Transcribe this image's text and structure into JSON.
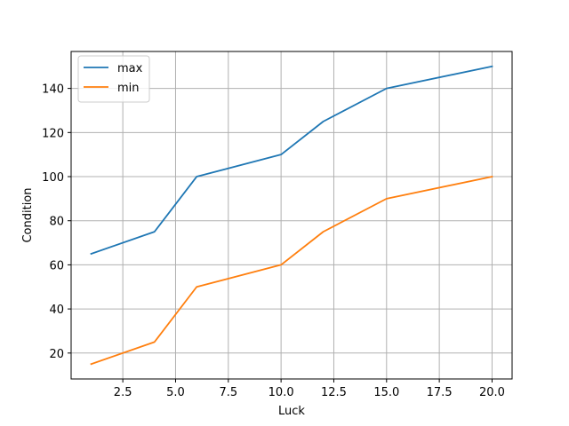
{
  "chart_data": {
    "type": "line",
    "title": "",
    "xlabel": "Luck",
    "ylabel": "Condition",
    "xlim": [
      0.05,
      20.95
    ],
    "ylim": [
      8.25,
      156.75
    ],
    "xticks": [
      2.5,
      5.0,
      7.5,
      10.0,
      12.5,
      15.0,
      17.5,
      20.0
    ],
    "xtick_labels": [
      "2.5",
      "5.0",
      "7.5",
      "10.0",
      "12.5",
      "15.0",
      "17.5",
      "20.0"
    ],
    "yticks": [
      20,
      40,
      60,
      80,
      100,
      120,
      140
    ],
    "ytick_labels": [
      "20",
      "40",
      "60",
      "80",
      "100",
      "120",
      "140"
    ],
    "grid": true,
    "legend_position": "top-left",
    "series": [
      {
        "name": "max",
        "color": "#1f77b4",
        "x": [
          1,
          4,
          6,
          10,
          12,
          15,
          20
        ],
        "y": [
          65,
          75,
          100,
          110,
          125,
          140,
          150
        ]
      },
      {
        "name": "min",
        "color": "#ff7f0e",
        "x": [
          1,
          4,
          6,
          10,
          12,
          15,
          20
        ],
        "y": [
          15,
          25,
          50,
          60,
          75,
          90,
          100
        ]
      }
    ]
  }
}
